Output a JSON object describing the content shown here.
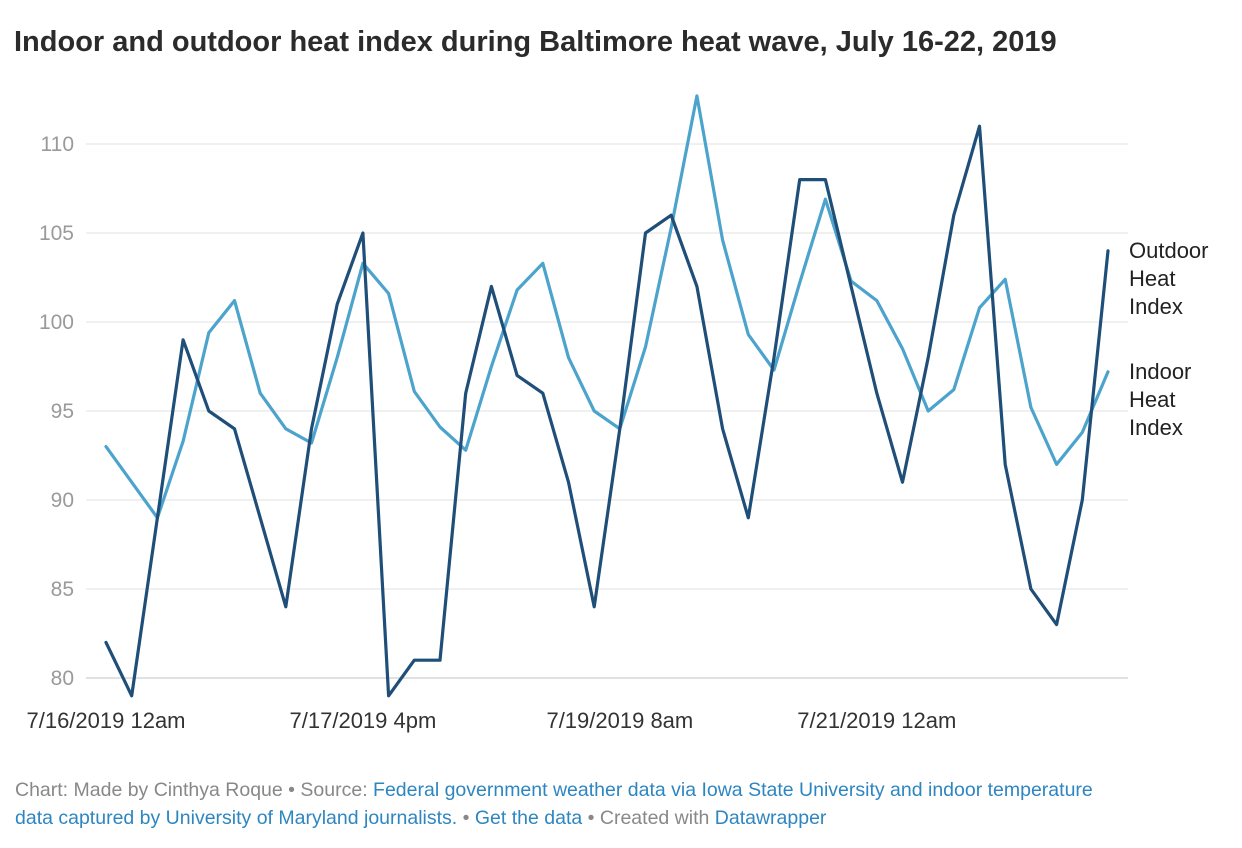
{
  "chart_data": {
    "type": "line",
    "title": "Indoor and outdoor heat index during Baltimore heat wave, July 16-22, 2019",
    "ylim": [
      80,
      110
    ],
    "y_ticks": [
      "80",
      "85",
      "90",
      "95",
      "100",
      "105",
      "110"
    ],
    "x_tick_labels": [
      "7/16/2019 12am",
      "7/17/2019 4pm",
      "7/19/2019 8am",
      "7/21/2019 12am"
    ],
    "x_tick_indices": [
      0,
      10,
      20,
      30
    ],
    "grid": true,
    "legend": "direct-labels-right",
    "series": [
      {
        "name": "Outdoor Heat Index",
        "label_lines": [
          "Outdoor",
          "Heat",
          "Index"
        ],
        "color": "#1f4e79",
        "values": [
          82,
          79,
          89,
          99,
          95,
          94,
          89,
          84,
          94,
          101,
          105,
          79,
          81,
          81,
          96,
          102,
          97,
          96,
          91,
          84,
          94,
          105,
          106,
          102,
          94,
          89,
          98,
          108,
          108,
          102,
          96,
          91,
          98,
          106,
          111,
          92,
          85,
          83,
          90,
          104
        ]
      },
      {
        "name": "Indoor Heat Index",
        "label_lines": [
          "Indoor",
          "Heat",
          "Index"
        ],
        "color": "#4ca3cc",
        "values": [
          93,
          91,
          89,
          93.3,
          99.4,
          101.2,
          96,
          94,
          93.2,
          98,
          103.3,
          101.6,
          96.1,
          94.1,
          92.8,
          97.5,
          101.8,
          103.3,
          98,
          95,
          94,
          98.6,
          105.3,
          112.7,
          104.6,
          99.3,
          97.3,
          102.2,
          106.9,
          102.3,
          101.2,
          98.5,
          95,
          96.2,
          100.8,
          102.4,
          95.2,
          92,
          93.8,
          97.2
        ]
      }
    ]
  },
  "footer": {
    "chart_credit": "Chart: Made by Cinthya Roque",
    "source_prefix": "Source: ",
    "source_link": "Federal government weather data via Iowa State University and indoor temperature data captured by University of Maryland journalists.",
    "get_data": "Get the data",
    "created_with_prefix": "Created with ",
    "created_with_link": "Datawrapper"
  }
}
